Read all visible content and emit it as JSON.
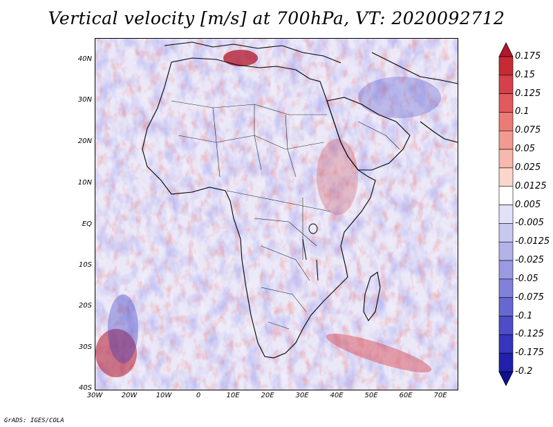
{
  "title": "Vertical velocity [m/s] at 700hPa, VT: 2020092712",
  "credit": "GrADS: IGES/COLA",
  "map": {
    "variable": "Vertical velocity",
    "units": "m/s",
    "level": "700hPa",
    "valid_time": "2020092712",
    "region": "Africa and Middle East",
    "lon_range": [
      -30,
      75
    ],
    "lat_range": [
      -40,
      45
    ],
    "lat_labels": [
      "40N",
      "30N",
      "20N",
      "10N",
      "EQ",
      "10S",
      "20S",
      "30S",
      "40S"
    ],
    "lat_values": [
      40,
      30,
      20,
      10,
      0,
      -10,
      -20,
      -30,
      -40
    ],
    "lon_labels": [
      "30W",
      "20W",
      "10W",
      "0",
      "10E",
      "20E",
      "30E",
      "40E",
      "50E",
      "60E",
      "70E"
    ],
    "lon_values": [
      -30,
      -20,
      -10,
      0,
      10,
      20,
      30,
      40,
      50,
      60,
      70
    ]
  },
  "colorbar": {
    "labels": [
      "0.175",
      "0.15",
      "0.125",
      "0.1",
      "0.075",
      "0.05",
      "0.025",
      "0.0125",
      "0.005",
      "-0.005",
      "-0.0125",
      "-0.025",
      "-0.05",
      "-0.075",
      "-0.1",
      "-0.125",
      "-0.175",
      "-0.2"
    ],
    "colors": [
      "#b2172b",
      "#c62a33",
      "#d6404a",
      "#e25a5d",
      "#ec7a76",
      "#f29a92",
      "#f7b8ad",
      "#fbd6cc",
      "#ffffff",
      "#e1e1f7",
      "#c9c9f0",
      "#b3b3ea",
      "#9a9ae3",
      "#8080db",
      "#6767d2",
      "#4d4dc8",
      "#3535bd",
      "#2020ad",
      "#10108f"
    ]
  }
}
